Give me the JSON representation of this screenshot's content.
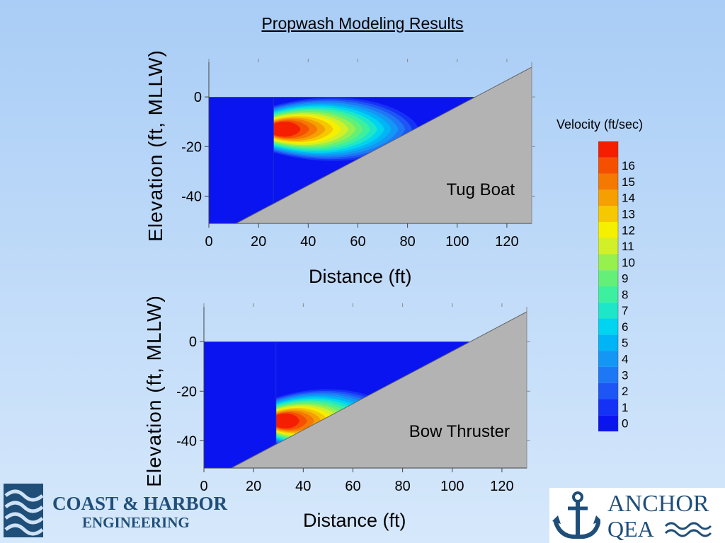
{
  "title": "Propwash Modeling Results",
  "chart_data": [
    {
      "type": "contour",
      "annotation": "Tug Boat",
      "xlabel": "Distance (ft)",
      "ylabel": "Elevation (ft, MLLW)",
      "xlim": [
        0,
        130
      ],
      "ylim": [
        -51,
        14
      ],
      "xticks": [
        0,
        20,
        40,
        60,
        80,
        100,
        120
      ],
      "yticks": [
        0,
        -20,
        -40
      ],
      "water_surface": 0,
      "slope_line": [
        [
          11,
          -51
        ],
        [
          130,
          12
        ]
      ],
      "jet_origin_x": 26,
      "jet_center_y": -13,
      "max_velocity": 17
    },
    {
      "type": "contour",
      "annotation": "Bow Thruster",
      "xlabel": "Distance (ft)",
      "ylabel": "Elevation (ft, MLLW)",
      "xlim": [
        0,
        130
      ],
      "ylim": [
        -51,
        14
      ],
      "xticks": [
        0,
        20,
        40,
        60,
        80,
        100,
        120
      ],
      "yticks": [
        0,
        -20,
        -40
      ],
      "water_surface": 0,
      "slope_line": [
        [
          11,
          -51
        ],
        [
          130,
          12
        ]
      ],
      "jet_origin_x": 29,
      "jet_center_y": -32,
      "max_velocity": 17
    }
  ],
  "legend": {
    "title": "Velocity (ft/sec)",
    "levels": [
      "0",
      "1",
      "2",
      "3",
      "4",
      "5",
      "6",
      "7",
      "8",
      "9",
      "10",
      "11",
      "12",
      "13",
      "14",
      "15",
      "16"
    ],
    "colors": [
      "#0a14f0",
      "#1432f5",
      "#1e55f5",
      "#1e78f5",
      "#1496f5",
      "#00b4f5",
      "#00d4f0",
      "#1ee6c8",
      "#3cf0a0",
      "#64f078",
      "#96f050",
      "#d2f028",
      "#f5f000",
      "#f5c800",
      "#f5a000",
      "#f57800",
      "#f55000",
      "#f51e00"
    ]
  },
  "logos": {
    "left_line1": "COAST & HARBOR",
    "left_line2": "ENGINEERING",
    "right_line1": "ANCHOR",
    "right_line2": "QEA"
  }
}
